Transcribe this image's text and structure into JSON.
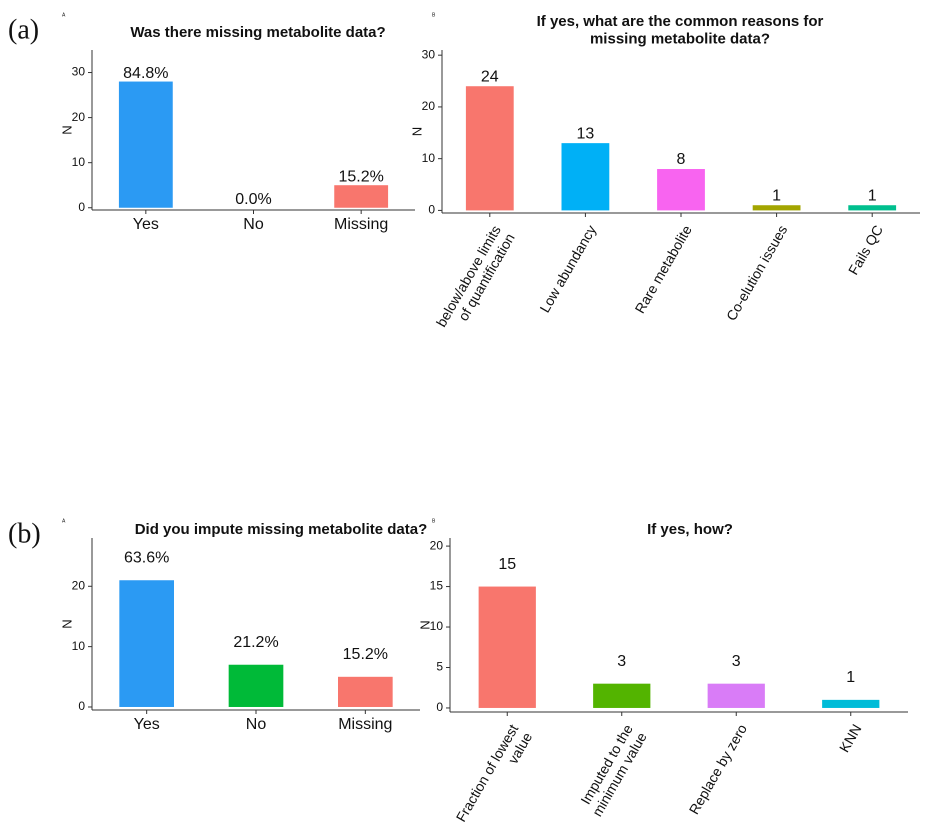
{
  "panel_labels": [
    "(a)",
    "(b)"
  ],
  "chart_data": [
    {
      "type": "bar",
      "tag": "A",
      "title": "Was there missing metabolite data?",
      "y_label": "N",
      "categories": [
        "Yes",
        "No",
        "Missing"
      ],
      "values": [
        28,
        0,
        5
      ],
      "percent_labels": [
        "84.8%",
        "0.0%",
        "15.2%"
      ],
      "colors": [
        "#2b9af3",
        "#00ba38",
        "#f8766d"
      ],
      "ylim": [
        -0.5,
        35
      ],
      "yticks": [
        0,
        10,
        20,
        30
      ]
    },
    {
      "type": "bar",
      "tag": "B",
      "title": "If yes, what are the common reasons for\nmissing metabolite data?",
      "y_label": "N",
      "categories": [
        "below/above limits\nof quantification",
        "Low abundancy",
        "Rare metabolite",
        "Co-elution issues",
        "Fails QC"
      ],
      "values": [
        24,
        13,
        8,
        1,
        1
      ],
      "colors": [
        "#f8766d",
        "#00b0f6",
        "#f864f0",
        "#a3a500",
        "#00bf8e"
      ],
      "ylim": [
        -0.5,
        31
      ],
      "yticks": [
        0,
        10,
        20,
        30
      ]
    },
    {
      "type": "bar",
      "tag": "A",
      "title": "Did you impute missing metabolite data?",
      "y_label": "N",
      "categories": [
        "Yes",
        "No",
        "Missing"
      ],
      "values": [
        21,
        7,
        5
      ],
      "percent_labels": [
        "63.6%",
        "21.2%",
        "15.2%"
      ],
      "colors": [
        "#2b9af3",
        "#00ba38",
        "#f8766d"
      ],
      "ylim": [
        -0.5,
        28
      ],
      "yticks": [
        0,
        10,
        20
      ]
    },
    {
      "type": "bar",
      "tag": "B",
      "title": "If yes, how?",
      "y_label": "N",
      "categories": [
        "Fraction of lowest\nvalue",
        "Imputed to the\nminimum value",
        "Replace by zero",
        "KNN"
      ],
      "values": [
        15,
        3,
        3,
        1
      ],
      "colors": [
        "#f8766d",
        "#53b400",
        "#d97cf7",
        "#00bcd8"
      ],
      "ylim": [
        -0.5,
        21
      ],
      "yticks": [
        0,
        5,
        10,
        15,
        20
      ]
    }
  ]
}
